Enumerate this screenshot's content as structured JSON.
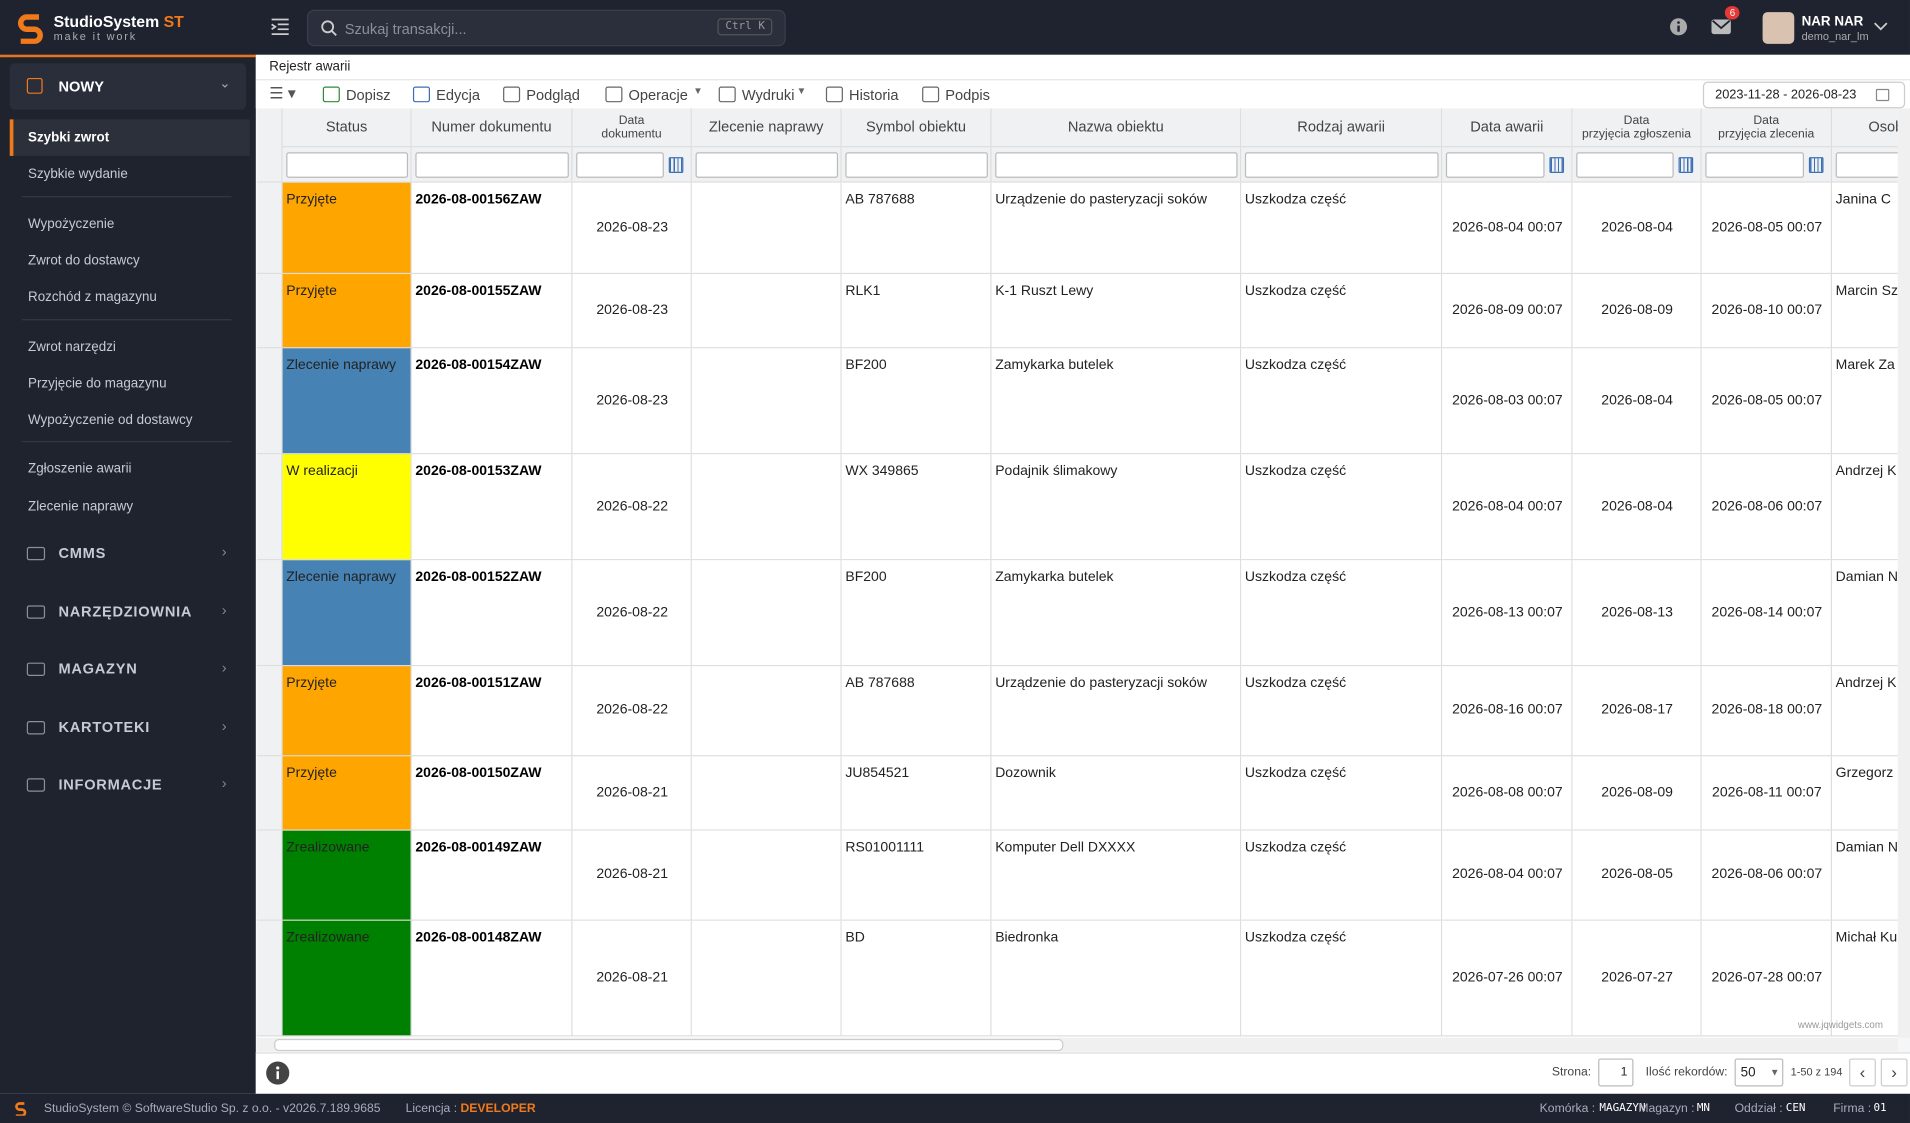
{
  "app": {
    "name": "StudioSystem",
    "name_suffix": "ST",
    "tagline": "make it work",
    "search_placeholder": "Szukaj transakcji...",
    "search_shortcut": "Ctrl K",
    "notifications": "6",
    "user_name": "NAR NAR",
    "user_login": "demo_nar_lm"
  },
  "sidebar": {
    "open_section": "NOWY",
    "items": [
      [
        "Szybki zwrot",
        "Szybkie wydanie"
      ],
      [
        "Wypożyczenie",
        "Zwrot do dostawcy",
        "Rozchód z magazynu"
      ],
      [
        "Zwrot narzędzi",
        "Przyjęcie do magazynu",
        "Wypożyczenie od dostawcy"
      ],
      [
        "Zgłoszenie awarii",
        "Zlecenie naprawy"
      ]
    ],
    "active": "Szybki zwrot",
    "sections": [
      "CMMS",
      "NARZĘDZIOWNIA",
      "MAGAZYN",
      "KARTOTEKI",
      "INFORMACJE"
    ]
  },
  "breadcrumb": "Rejestr awarii",
  "toolbar": {
    "buttons": [
      "Dopisz",
      "Edycja",
      "Podgląd",
      "Operacje",
      "Wydruki",
      "Historia",
      "Podpis"
    ],
    "date_range": "2023-11-28 - 2026-08-23"
  },
  "table": {
    "columns": [
      [
        "Status"
      ],
      [
        "Numer dokumentu"
      ],
      [
        "Data",
        "dokumentu"
      ],
      [
        "Zlecenie naprawy"
      ],
      [
        "Symbol obiektu"
      ],
      [
        "Nazwa obiektu"
      ],
      [
        "Rodzaj awarii"
      ],
      [
        "Data awarii"
      ],
      [
        "Data",
        "przyjęcia zgłoszenia"
      ],
      [
        "Data",
        "przyjęcia zlecenia"
      ],
      [
        "Osoba"
      ]
    ],
    "status_colors": {
      "Przyjęte": "#ffa500",
      "Zlecenie naprawy": "#4682b4",
      "W realizacji": "#ffff00",
      "Zrealizowane": "#008000"
    },
    "rows": [
      {
        "status": "Przyjęte",
        "number": "2026-08-00156ZAW",
        "doc_date": "2026-08-23",
        "symbol": "AB 787688",
        "name": "Urządzenie do pasteryzacji soków",
        "type": "Uszkodza część",
        "failure_date": "2026-08-04 00:07",
        "report_date": "2026-08-04",
        "order_date": "2026-08-05 00:07",
        "person": "Janina C"
      },
      {
        "status": "Przyjęte",
        "number": "2026-08-00155ZAW",
        "doc_date": "2026-08-23",
        "symbol": "RLK1",
        "name": "K-1 Ruszt Lewy",
        "type": "Uszkodza część",
        "failure_date": "2026-08-09 00:07",
        "report_date": "2026-08-09",
        "order_date": "2026-08-10 00:07",
        "person": "Marcin Sz"
      },
      {
        "status": "Zlecenie naprawy",
        "number": "2026-08-00154ZAW",
        "doc_date": "2026-08-23",
        "symbol": "BF200",
        "name": "Zamykarka butelek",
        "type": "Uszkodza część",
        "failure_date": "2026-08-03 00:07",
        "report_date": "2026-08-04",
        "order_date": "2026-08-05 00:07",
        "person": "Marek Za"
      },
      {
        "status": "W realizacji",
        "number": "2026-08-00153ZAW",
        "doc_date": "2026-08-22",
        "symbol": "WX 349865",
        "name": "Podajnik ślimakowy",
        "type": "Uszkodza część",
        "failure_date": "2026-08-04 00:07",
        "report_date": "2026-08-04",
        "order_date": "2026-08-06 00:07",
        "person": "Andrzej K"
      },
      {
        "status": "Zlecenie naprawy",
        "number": "2026-08-00152ZAW",
        "doc_date": "2026-08-22",
        "symbol": "BF200",
        "name": "Zamykarka butelek",
        "type": "Uszkodza część",
        "failure_date": "2026-08-13 00:07",
        "report_date": "2026-08-13",
        "order_date": "2026-08-14 00:07",
        "person": "Damian N"
      },
      {
        "status": "Przyjęte",
        "number": "2026-08-00151ZAW",
        "doc_date": "2026-08-22",
        "symbol": "AB 787688",
        "name": "Urządzenie do pasteryzacji soków",
        "type": "Uszkodza część",
        "failure_date": "2026-08-16 00:07",
        "report_date": "2026-08-17",
        "order_date": "2026-08-18 00:07",
        "person": "Andrzej K"
      },
      {
        "status": "Przyjęte",
        "number": "2026-08-00150ZAW",
        "doc_date": "2026-08-21",
        "symbol": "JU854521",
        "name": "Dozownik",
        "type": "Uszkodza część",
        "failure_date": "2026-08-08 00:07",
        "report_date": "2026-08-09",
        "order_date": "2026-08-11 00:07",
        "person": "Grzegorz"
      },
      {
        "status": "Zrealizowane",
        "number": "2026-08-00149ZAW",
        "doc_date": "2026-08-21",
        "symbol": "RS01001111",
        "name": "Komputer Dell DXXXX",
        "type": "Uszkodza część",
        "failure_date": "2026-08-04 00:07",
        "report_date": "2026-08-05",
        "order_date": "2026-08-06 00:07",
        "person": "Damian N"
      },
      {
        "status": "Zrealizowane",
        "number": "2026-08-00148ZAW",
        "doc_date": "2026-08-21",
        "symbol": "BD",
        "name": "Biedronka",
        "type": "Uszkodza część",
        "failure_date": "2026-07-26 00:07",
        "report_date": "2026-07-27",
        "order_date": "2026-07-28 00:07",
        "person": "Michał Ku"
      }
    ],
    "watermark": "www.jqwidgets.com"
  },
  "pager": {
    "page_label": "Strona:",
    "page": "1",
    "records_label": "Ilość rekordów:",
    "records": "50",
    "range": "1-50 z 194"
  },
  "footer": {
    "copyright": "StudioSystem © SoftwareStudio Sp. z o.o. - v2026.7.189.9685",
    "license_label": "Licencja :",
    "license": "DEVELOPER",
    "info": [
      [
        "Komórka :",
        "MAGAZYN"
      ],
      [
        "Magazyn :",
        "MN"
      ],
      [
        "Oddział :",
        "CEN"
      ],
      [
        "Firma :",
        "01"
      ]
    ]
  }
}
